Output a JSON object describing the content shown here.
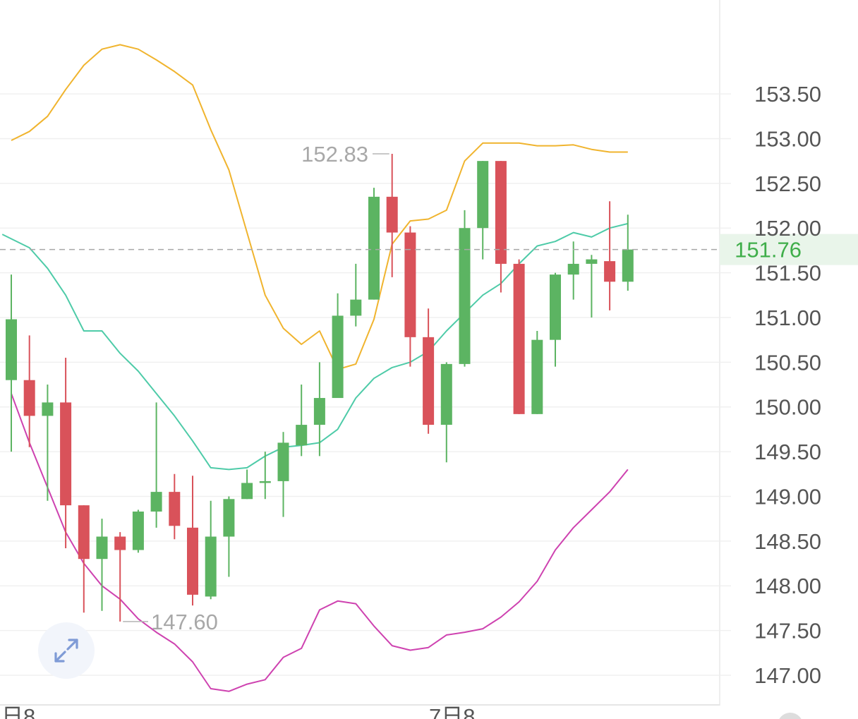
{
  "chart_data": {
    "type": "candlestick",
    "y_tick_labels": [
      "147.00",
      "147.50",
      "148.00",
      "148.50",
      "149.00",
      "149.50",
      "150.00",
      "150.50",
      "151.00",
      "151.50",
      "152.00",
      "152.50",
      "153.00",
      "153.50"
    ],
    "ylim": [
      146.55,
      154.55
    ],
    "grid": true,
    "current_price": {
      "value": 151.76,
      "label": "151.76"
    },
    "high_marker": {
      "value": 152.83,
      "label": "152.83"
    },
    "low_marker": {
      "value": 147.6,
      "label": "147.60"
    },
    "candles": [
      {
        "o": 150.3,
        "c": 150.98,
        "h": 151.48,
        "l": 149.5
      },
      {
        "o": 150.3,
        "c": 149.9,
        "h": 150.8,
        "l": 149.55
      },
      {
        "o": 149.9,
        "c": 150.05,
        "h": 150.25,
        "l": 148.95
      },
      {
        "o": 150.05,
        "c": 148.9,
        "h": 150.55,
        "l": 148.42
      },
      {
        "o": 148.9,
        "c": 148.3,
        "h": 148.9,
        "l": 147.7
      },
      {
        "o": 148.3,
        "c": 148.55,
        "h": 148.75,
        "l": 147.72
      },
      {
        "o": 148.55,
        "c": 148.4,
        "h": 148.6,
        "l": 147.6
      },
      {
        "o": 148.4,
        "c": 148.83,
        "h": 148.85,
        "l": 148.37
      },
      {
        "o": 148.83,
        "c": 149.05,
        "h": 150.05,
        "l": 148.65
      },
      {
        "o": 149.05,
        "c": 148.67,
        "h": 149.25,
        "l": 148.52
      },
      {
        "o": 148.65,
        "c": 147.9,
        "h": 149.23,
        "l": 147.78
      },
      {
        "o": 147.88,
        "c": 148.55,
        "h": 148.95,
        "l": 147.85
      },
      {
        "o": 148.55,
        "c": 148.97,
        "h": 149.0,
        "l": 148.1
      },
      {
        "o": 148.97,
        "c": 149.15,
        "h": 149.3,
        "l": 148.97
      },
      {
        "o": 149.15,
        "c": 149.17,
        "h": 149.5,
        "l": 148.97
      },
      {
        "o": 149.17,
        "c": 149.6,
        "h": 149.72,
        "l": 148.77
      },
      {
        "o": 149.57,
        "c": 149.8,
        "h": 150.25,
        "l": 149.45
      },
      {
        "o": 149.8,
        "c": 150.1,
        "h": 150.5,
        "l": 149.45
      },
      {
        "o": 150.1,
        "c": 151.02,
        "h": 151.27,
        "l": 150.1
      },
      {
        "o": 151.02,
        "c": 151.2,
        "h": 151.6,
        "l": 150.9
      },
      {
        "o": 151.2,
        "c": 152.35,
        "h": 152.45,
        "l": 151.2
      },
      {
        "o": 152.35,
        "c": 151.95,
        "h": 152.83,
        "l": 151.45
      },
      {
        "o": 151.95,
        "c": 150.78,
        "h": 152.02,
        "l": 150.45
      },
      {
        "o": 150.78,
        "c": 149.8,
        "h": 151.1,
        "l": 149.7
      },
      {
        "o": 149.8,
        "c": 150.48,
        "h": 150.5,
        "l": 149.38
      },
      {
        "o": 150.48,
        "c": 152.0,
        "h": 152.2,
        "l": 150.45
      },
      {
        "o": 152.0,
        "c": 152.75,
        "h": 152.75,
        "l": 151.65
      },
      {
        "o": 152.75,
        "c": 151.6,
        "h": 152.75,
        "l": 151.28
      },
      {
        "o": 151.6,
        "c": 149.92,
        "h": 151.65,
        "l": 149.92
      },
      {
        "o": 149.92,
        "c": 150.75,
        "h": 150.85,
        "l": 149.92
      },
      {
        "o": 150.75,
        "c": 151.48,
        "h": 151.5,
        "l": 150.45
      },
      {
        "o": 151.48,
        "c": 151.6,
        "h": 151.85,
        "l": 151.2
      },
      {
        "o": 151.6,
        "c": 151.65,
        "h": 151.7,
        "l": 151.0
      },
      {
        "o": 151.63,
        "c": 151.4,
        "h": 152.3,
        "l": 151.08
      },
      {
        "o": 151.4,
        "c": 151.76,
        "h": 152.15,
        "l": 151.3
      }
    ],
    "series": [
      {
        "color": "#f0b42e",
        "x": [
          0,
          1,
          2,
          3,
          4,
          5,
          6,
          7,
          8,
          9,
          10,
          11,
          12,
          13,
          14,
          15,
          16,
          17,
          18,
          19,
          20,
          21,
          22,
          23,
          24,
          25,
          26,
          27,
          28,
          29,
          30,
          31,
          32,
          33,
          34
        ],
        "values": [
          152.98,
          153.08,
          153.25,
          153.55,
          153.82,
          154.0,
          154.05,
          154.0,
          153.88,
          153.75,
          153.6,
          153.1,
          152.65,
          151.95,
          151.25,
          150.88,
          150.7,
          150.85,
          150.42,
          150.48,
          150.98,
          151.82,
          152.08,
          152.1,
          152.2,
          152.75,
          152.95,
          152.95,
          152.95,
          152.92,
          152.92,
          152.93,
          152.88,
          152.85,
          152.85
        ]
      },
      {
        "color": "#4ecba8",
        "x": [
          -0.5,
          1,
          2,
          3,
          4,
          5,
          6,
          7,
          8,
          9,
          10,
          11,
          12,
          13,
          14,
          15,
          16,
          17,
          18,
          19,
          20,
          21,
          22,
          23,
          24,
          25,
          26,
          27,
          28,
          29,
          30,
          31,
          32,
          33,
          34
        ],
        "values": [
          151.93,
          151.78,
          151.55,
          151.25,
          150.85,
          150.85,
          150.6,
          150.4,
          150.15,
          149.9,
          149.62,
          149.32,
          149.3,
          149.32,
          149.45,
          149.55,
          149.57,
          149.6,
          149.75,
          150.1,
          150.32,
          150.44,
          150.5,
          150.62,
          150.85,
          151.05,
          151.25,
          151.38,
          151.6,
          151.8,
          151.85,
          151.95,
          151.9,
          152.0,
          152.05
        ]
      },
      {
        "color": "#ce42b0",
        "x": [
          0,
          1,
          2,
          3,
          4,
          5,
          6,
          7,
          8,
          9,
          10,
          11,
          12,
          13,
          14,
          15,
          16,
          17,
          18,
          19,
          20,
          21,
          22,
          23,
          24,
          25,
          26,
          27,
          28,
          29,
          30,
          31,
          32,
          33,
          34
        ],
        "values": [
          150.15,
          149.6,
          149.1,
          148.6,
          148.25,
          148.0,
          147.85,
          147.63,
          147.48,
          147.35,
          147.15,
          146.85,
          146.82,
          146.9,
          146.95,
          147.2,
          147.3,
          147.73,
          147.83,
          147.8,
          147.55,
          147.33,
          147.28,
          147.31,
          147.45,
          147.48,
          147.52,
          147.65,
          147.82,
          148.05,
          148.4,
          148.65,
          148.85,
          149.05,
          149.3
        ]
      }
    ],
    "x_axis_fragments": [
      "日8",
      "7日8"
    ]
  }
}
